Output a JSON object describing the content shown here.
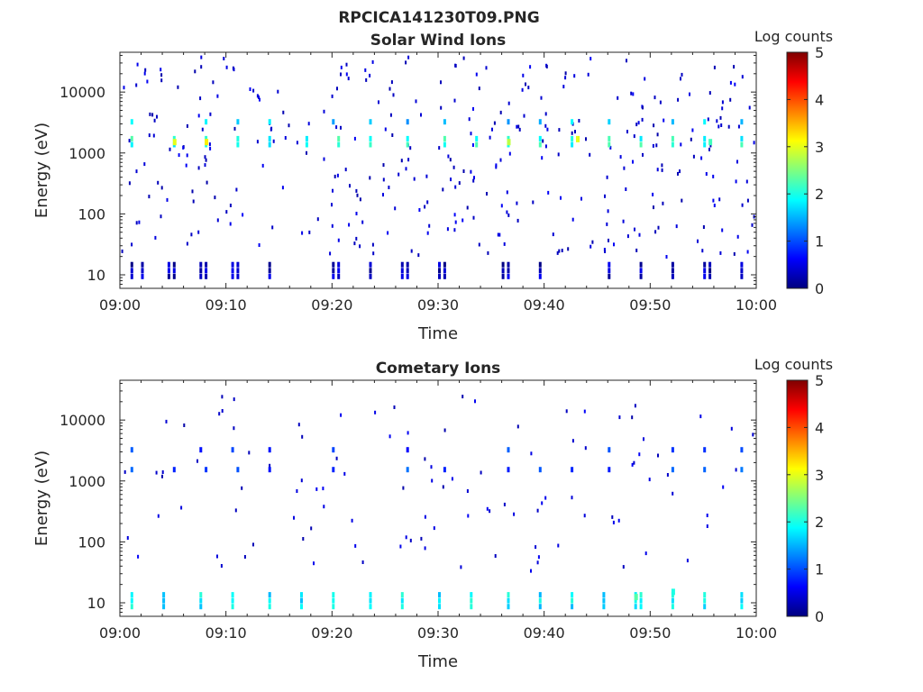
{
  "figure_title": "RPCICA141230T09.PNG",
  "colorscale": {
    "stops": [
      "#00007f",
      "#0000ff",
      "#007fff",
      "#00ffff",
      "#7fff7f",
      "#ffff00",
      "#ff7f00",
      "#ff0000",
      "#7f0000"
    ]
  },
  "chart_data": [
    {
      "type": "heatmap",
      "title": "Solar Wind Ions",
      "xlabel": "Time",
      "ylabel": "Energy (eV)",
      "colorbar_label": "Log counts",
      "colorbar_ticks": [
        "0",
        "1",
        "2",
        "3",
        "4",
        "5"
      ],
      "clim": [
        0,
        5
      ],
      "x_ticks": [
        "09:00",
        "09:10",
        "09:20",
        "09:30",
        "09:40",
        "09:50",
        "10:00"
      ],
      "xlim_minutes": [
        0,
        60
      ],
      "y_scale": "log",
      "ylim": [
        6,
        45000
      ],
      "y_ticks": [
        {
          "value": 10,
          "label": "10"
        },
        {
          "value": 100,
          "label": "100"
        },
        {
          "value": 1000,
          "label": "1000"
        },
        {
          "value": 10000,
          "label": "10000"
        }
      ],
      "bands": [
        {
          "minutes": [
            1.0,
            5.0,
            8.0,
            11.0,
            14.0,
            17.5,
            20.5,
            23.5,
            27.0,
            30.5,
            33.5,
            36.5,
            39.5,
            42.5,
            46.0,
            49.0,
            52.0,
            55.0,
            58.5
          ],
          "energy": 1700,
          "level": 2.0,
          "height": 2
        },
        {
          "minutes": [
            1.0,
            8.0,
            11.0,
            14.0,
            20.0,
            23.5,
            27.0,
            30.5,
            36.5,
            39.5,
            42.5,
            46.0,
            52.0,
            55.0,
            58.5
          ],
          "energy": 3600,
          "level": 1.6,
          "height": 1
        },
        {
          "minutes": [
            1.0,
            2.0,
            4.5,
            5.0,
            7.5,
            8.0,
            10.5,
            11.0,
            14.0,
            20.0,
            20.5,
            23.5,
            26.5,
            27.0,
            30.0,
            30.5,
            36.0,
            36.5,
            39.5,
            46.0,
            49.0,
            52.0,
            55.0,
            55.5,
            58.5
          ],
          "energy": 13,
          "level": 0.3,
          "height": 3
        }
      ],
      "hotspots": [
        {
          "minute": 5.0,
          "energy": 1700,
          "level": 3.0
        },
        {
          "minute": 8.0,
          "energy": 1700,
          "level": 3.2
        },
        {
          "minute": 36.5,
          "energy": 1700,
          "level": 2.8
        },
        {
          "minute": 43.0,
          "energy": 1900,
          "level": 3.0
        },
        {
          "minute": 55.5,
          "energy": 1700,
          "level": 2.2
        }
      ],
      "scatter": {
        "count": 360,
        "energy_range": [
          20,
          40000
        ],
        "level": 0.2
      }
    },
    {
      "type": "heatmap",
      "title": "Cometary Ions",
      "xlabel": "Time",
      "ylabel": "Energy (eV)",
      "colorbar_label": "Log counts",
      "colorbar_ticks": [
        "0",
        "1",
        "2",
        "3",
        "4",
        "5"
      ],
      "clim": [
        0,
        5
      ],
      "x_ticks": [
        "09:00",
        "09:10",
        "09:20",
        "09:30",
        "09:40",
        "09:50",
        "10:00"
      ],
      "xlim_minutes": [
        0,
        60
      ],
      "y_scale": "log",
      "ylim": [
        6,
        45000
      ],
      "y_ticks": [
        {
          "value": 10,
          "label": "10"
        },
        {
          "value": 100,
          "label": "100"
        },
        {
          "value": 1000,
          "label": "1000"
        },
        {
          "value": 10000,
          "label": "10000"
        }
      ],
      "bands": [
        {
          "minutes": [
            1.0,
            4.0,
            7.5,
            10.5,
            14.0,
            17.0,
            20.0,
            23.5,
            26.5,
            30.0,
            33.0,
            36.5,
            39.5,
            42.5,
            45.5,
            48.5,
            49.0,
            52.0,
            55.0,
            58.5
          ],
          "energy": 12,
          "level": 1.8,
          "height": 3
        },
        {
          "minutes": [
            1.0,
            5.0,
            8.0,
            11.0,
            14.0,
            20.0,
            27.0,
            30.5,
            36.5,
            39.5,
            42.5,
            46.0,
            52.0,
            55.0,
            58.5
          ],
          "energy": 1700,
          "level": 1.0,
          "height": 1
        },
        {
          "minutes": [
            1.0,
            7.5,
            10.5,
            14.0,
            20.0,
            27.0,
            36.5,
            46.0,
            52.0,
            55.0,
            58.5
          ],
          "energy": 3600,
          "level": 0.8,
          "height": 1
        }
      ],
      "hotspots": [
        {
          "minute": 48.5,
          "energy": 14,
          "level": 2.3
        },
        {
          "minute": 52.0,
          "energy": 17,
          "level": 2.0
        }
      ],
      "scatter": {
        "count": 110,
        "energy_range": [
          30,
          30000
        ],
        "level": 0.2
      }
    }
  ]
}
